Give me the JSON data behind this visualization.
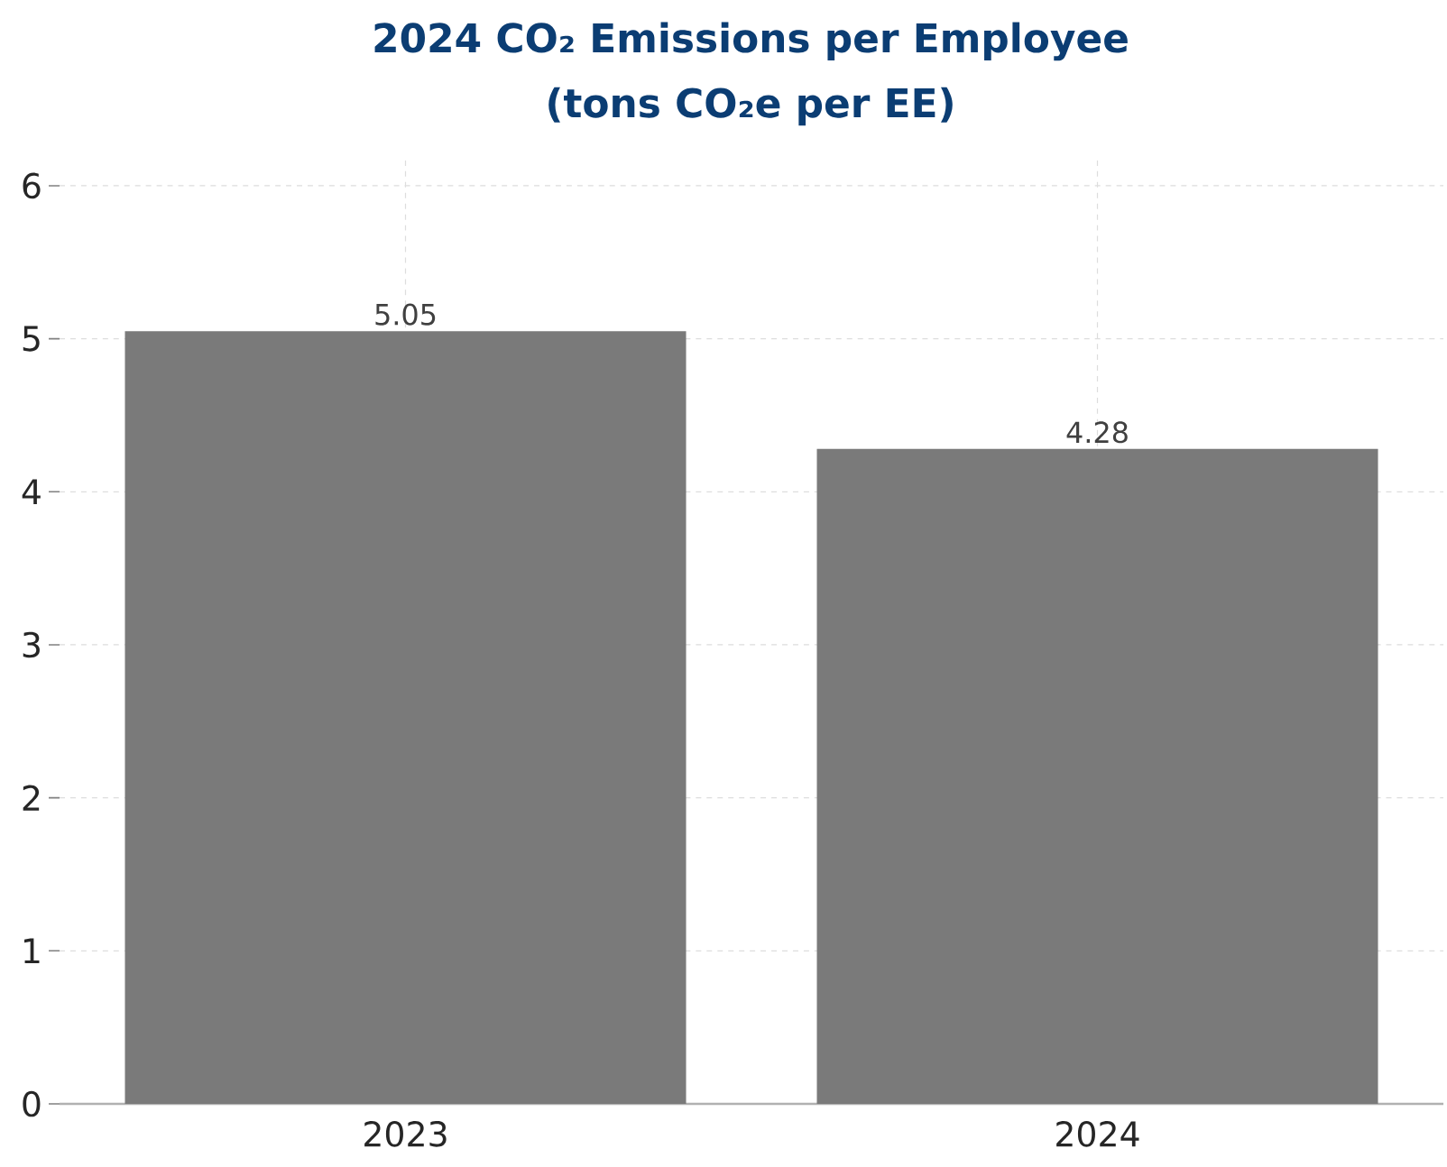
{
  "chart_data": {
    "type": "bar",
    "title": "2024 CO₂ Emissions per Employee",
    "subtitle": "(tons CO₂e per EE)",
    "categories": [
      "2023",
      "2024"
    ],
    "values": [
      5.05,
      4.28
    ],
    "color": "#7a7a7a",
    "ylim": [
      0,
      6.2
    ],
    "yticks": [
      0,
      1,
      2,
      3,
      4,
      5,
      6
    ],
    "grid": true,
    "data_labels": true
  }
}
